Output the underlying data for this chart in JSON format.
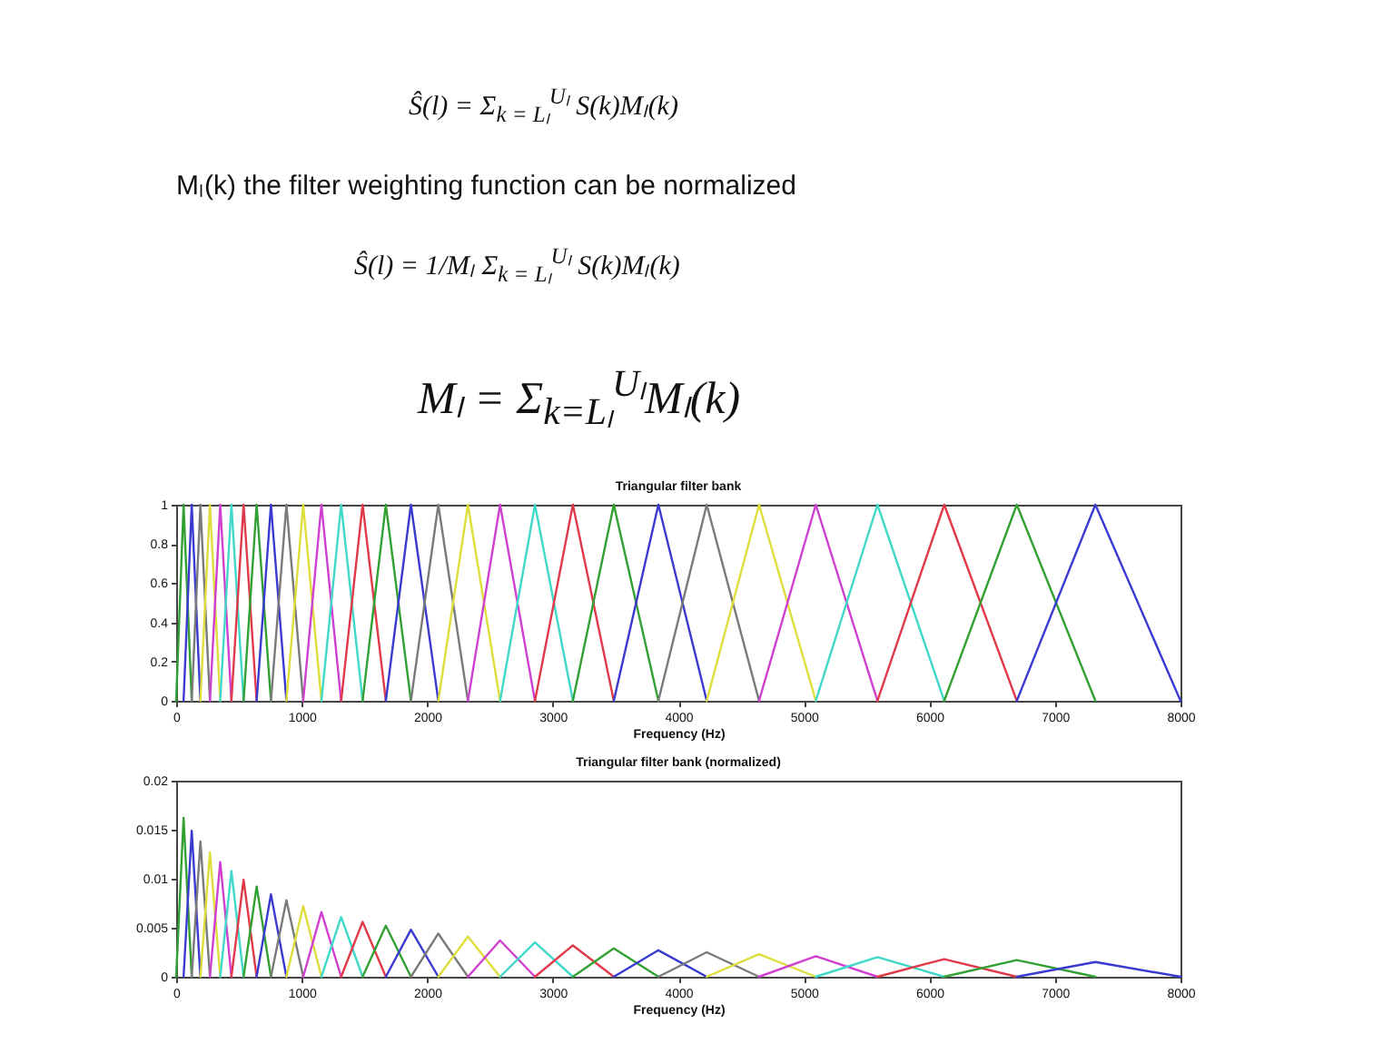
{
  "chart_data": [
    {
      "type": "line",
      "title": "Triangular filter bank",
      "xlabel": "Frequency (Hz)",
      "annotations": [
        "Ŝ(l) = Σ$_{k = Lₗ}$$^{Uₗ}$ S(k)Mₗ(k)",
        "Mₗ(k) the filter weighting function can be normalized",
        "Ŝ(l) = 1/Mₗ Σ$_{k = Lₗ}$$^{Uₗ}$ S(k)Mₗ(k)",
        "Mₗ = Σ$_{k=Lₗ}$$^{Uₗ}$Mₗ(k)"
      ],
      "xlim": [
        0,
        8000
      ],
      "xticks": [
        0,
        1000,
        2000,
        3000,
        4000,
        5000,
        6000,
        7000,
        8000
      ],
      "ylim": [
        0,
        1
      ],
      "yticks": [
        0,
        0.2,
        0.4,
        0.6,
        0.8,
        1
      ],
      "marker": "none",
      "series": [
        {
          "color": "#33a033",
          "x": [
            0,
            59,
            124
          ],
          "values": [
            0,
            1,
            0
          ]
        },
        {
          "color": "#3a3ad0",
          "x": [
            59,
            124,
            193
          ],
          "values": [
            0,
            1,
            0
          ]
        },
        {
          "color": "#7a7a7a",
          "x": [
            124,
            193,
            269
          ],
          "values": [
            0,
            1,
            0
          ]
        },
        {
          "color": "#dede3a",
          "x": [
            193,
            269,
            351
          ],
          "values": [
            0,
            1,
            0
          ]
        },
        {
          "color": "#d040d0",
          "x": [
            269,
            351,
            440
          ],
          "values": [
            0,
            1,
            0
          ]
        },
        {
          "color": "#40d8c8",
          "x": [
            351,
            440,
            537
          ],
          "values": [
            0,
            1,
            0
          ]
        },
        {
          "color": "#e03a4a",
          "x": [
            440,
            537,
            641
          ],
          "values": [
            0,
            1,
            0
          ]
        },
        {
          "color": "#33a033",
          "x": [
            537,
            641,
            755
          ],
          "values": [
            0,
            1,
            0
          ]
        },
        {
          "color": "#3a3ad0",
          "x": [
            641,
            755,
            878
          ],
          "values": [
            0,
            1,
            0
          ]
        },
        {
          "color": "#7a7a7a",
          "x": [
            755,
            878,
            1012
          ],
          "values": [
            0,
            1,
            0
          ]
        },
        {
          "color": "#dede3a",
          "x": [
            878,
            1012,
            1157
          ],
          "values": [
            0,
            1,
            0
          ]
        },
        {
          "color": "#d040d0",
          "x": [
            1012,
            1157,
            1314
          ],
          "values": [
            0,
            1,
            0
          ]
        },
        {
          "color": "#40d8c8",
          "x": [
            1157,
            1314,
            1485
          ],
          "values": [
            0,
            1,
            0
          ]
        },
        {
          "color": "#e03a4a",
          "x": [
            1314,
            1485,
            1670
          ],
          "values": [
            0,
            1,
            0
          ]
        },
        {
          "color": "#33a033",
          "x": [
            1485,
            1670,
            1870
          ],
          "values": [
            0,
            1,
            0
          ]
        },
        {
          "color": "#3a3ad0",
          "x": [
            1670,
            1870,
            2088
          ],
          "values": [
            0,
            1,
            0
          ]
        },
        {
          "color": "#7a7a7a",
          "x": [
            1870,
            2088,
            2324
          ],
          "values": [
            0,
            1,
            0
          ]
        },
        {
          "color": "#dede3a",
          "x": [
            2088,
            2324,
            2580
          ],
          "values": [
            0,
            1,
            0
          ]
        },
        {
          "color": "#d040d0",
          "x": [
            2324,
            2580,
            2858
          ],
          "values": [
            0,
            1,
            0
          ]
        },
        {
          "color": "#40d8c8",
          "x": [
            2580,
            2858,
            3160
          ],
          "values": [
            0,
            1,
            0
          ]
        },
        {
          "color": "#e03a4a",
          "x": [
            2858,
            3160,
            3486
          ],
          "values": [
            0,
            1,
            0
          ]
        },
        {
          "color": "#33a033",
          "x": [
            3160,
            3486,
            3841
          ],
          "values": [
            0,
            1,
            0
          ]
        },
        {
          "color": "#3a3ad0",
          "x": [
            3486,
            3841,
            4226
          ],
          "values": [
            0,
            1,
            0
          ]
        },
        {
          "color": "#7a7a7a",
          "x": [
            3841,
            4226,
            4643
          ],
          "values": [
            0,
            1,
            0
          ]
        },
        {
          "color": "#dede3a",
          "x": [
            4226,
            4643,
            5095
          ],
          "values": [
            0,
            1,
            0
          ]
        },
        {
          "color": "#d040d0",
          "x": [
            4643,
            5095,
            5586
          ],
          "values": [
            0,
            1,
            0
          ]
        },
        {
          "color": "#40d8c8",
          "x": [
            5095,
            5586,
            6118
          ],
          "values": [
            0,
            1,
            0
          ]
        },
        {
          "color": "#e03a4a",
          "x": [
            5586,
            6118,
            6696
          ],
          "values": [
            0,
            1,
            0
          ]
        },
        {
          "color": "#33a033",
          "x": [
            6118,
            6696,
            7322
          ],
          "values": [
            0,
            1,
            0
          ]
        },
        {
          "color": "#3a3ad0",
          "x": [
            6696,
            7322,
            8000
          ],
          "values": [
            0,
            1,
            0
          ]
        }
      ]
    },
    {
      "type": "line",
      "title": "Triangular filter bank (normalized)",
      "xlabel": "Frequency (Hz)",
      "xlim": [
        0,
        8000
      ],
      "xticks": [
        0,
        1000,
        2000,
        3000,
        4000,
        5000,
        6000,
        7000,
        8000
      ],
      "ylim": [
        0,
        0.02
      ],
      "yticks": [
        0,
        0.005,
        0.01,
        0.015,
        0.02
      ],
      "marker": "none",
      "series": [
        {
          "color": "#33a033",
          "x": [
            0,
            59,
            124
          ],
          "values": [
            0,
            0.0162,
            0
          ]
        },
        {
          "color": "#3a3ad0",
          "x": [
            59,
            124,
            193
          ],
          "values": [
            0,
            0.0149,
            0
          ]
        },
        {
          "color": "#7a7a7a",
          "x": [
            124,
            193,
            269
          ],
          "values": [
            0,
            0.0138,
            0
          ]
        },
        {
          "color": "#dede3a",
          "x": [
            193,
            269,
            351
          ],
          "values": [
            0,
            0.0127,
            0
          ]
        },
        {
          "color": "#d040d0",
          "x": [
            269,
            351,
            440
          ],
          "values": [
            0,
            0.0117,
            0
          ]
        },
        {
          "color": "#40d8c8",
          "x": [
            351,
            440,
            537
          ],
          "values": [
            0,
            0.0108,
            0
          ]
        },
        {
          "color": "#e03a4a",
          "x": [
            440,
            537,
            641
          ],
          "values": [
            0,
            0.0099,
            0
          ]
        },
        {
          "color": "#33a033",
          "x": [
            537,
            641,
            755
          ],
          "values": [
            0,
            0.0092,
            0
          ]
        },
        {
          "color": "#3a3ad0",
          "x": [
            641,
            755,
            878
          ],
          "values": [
            0,
            0.0084,
            0
          ]
        },
        {
          "color": "#7a7a7a",
          "x": [
            755,
            878,
            1012
          ],
          "values": [
            0,
            0.0078,
            0
          ]
        },
        {
          "color": "#dede3a",
          "x": [
            878,
            1012,
            1157
          ],
          "values": [
            0,
            0.0072,
            0
          ]
        },
        {
          "color": "#d040d0",
          "x": [
            1012,
            1157,
            1314
          ],
          "values": [
            0,
            0.0066,
            0
          ]
        },
        {
          "color": "#40d8c8",
          "x": [
            1157,
            1314,
            1485
          ],
          "values": [
            0,
            0.0061,
            0
          ]
        },
        {
          "color": "#e03a4a",
          "x": [
            1314,
            1485,
            1670
          ],
          "values": [
            0,
            0.0056,
            0
          ]
        },
        {
          "color": "#33a033",
          "x": [
            1485,
            1670,
            1870
          ],
          "values": [
            0,
            0.0052,
            0
          ]
        },
        {
          "color": "#3a3ad0",
          "x": [
            1670,
            1870,
            2088
          ],
          "values": [
            0,
            0.0048,
            0
          ]
        },
        {
          "color": "#7a7a7a",
          "x": [
            1870,
            2088,
            2324
          ],
          "values": [
            0,
            0.0044,
            0
          ]
        },
        {
          "color": "#dede3a",
          "x": [
            2088,
            2324,
            2580
          ],
          "values": [
            0,
            0.0041,
            0
          ]
        },
        {
          "color": "#d040d0",
          "x": [
            2324,
            2580,
            2858
          ],
          "values": [
            0,
            0.0037,
            0
          ]
        },
        {
          "color": "#40d8c8",
          "x": [
            2580,
            2858,
            3160
          ],
          "values": [
            0,
            0.0035,
            0
          ]
        },
        {
          "color": "#e03a4a",
          "x": [
            2858,
            3160,
            3486
          ],
          "values": [
            0,
            0.0032,
            0
          ]
        },
        {
          "color": "#33a033",
          "x": [
            3160,
            3486,
            3841
          ],
          "values": [
            0,
            0.0029,
            0
          ]
        },
        {
          "color": "#3a3ad0",
          "x": [
            3486,
            3841,
            4226
          ],
          "values": [
            0,
            0.0027,
            0
          ]
        },
        {
          "color": "#7a7a7a",
          "x": [
            3841,
            4226,
            4643
          ],
          "values": [
            0,
            0.0025,
            0
          ]
        },
        {
          "color": "#dede3a",
          "x": [
            4226,
            4643,
            5095
          ],
          "values": [
            0,
            0.0023,
            0
          ]
        },
        {
          "color": "#d040d0",
          "x": [
            4643,
            5095,
            5586
          ],
          "values": [
            0,
            0.0021,
            0
          ]
        },
        {
          "color": "#40d8c8",
          "x": [
            5095,
            5586,
            6118
          ],
          "values": [
            0,
            0.002,
            0
          ]
        },
        {
          "color": "#e03a4a",
          "x": [
            5586,
            6118,
            6696
          ],
          "values": [
            0,
            0.0018,
            0
          ]
        },
        {
          "color": "#33a033",
          "x": [
            6118,
            6696,
            7322
          ],
          "values": [
            0,
            0.0017,
            0
          ]
        },
        {
          "color": "#3a3ad0",
          "x": [
            6696,
            7322,
            8000
          ],
          "values": [
            0,
            0.0015,
            0
          ]
        }
      ]
    }
  ]
}
